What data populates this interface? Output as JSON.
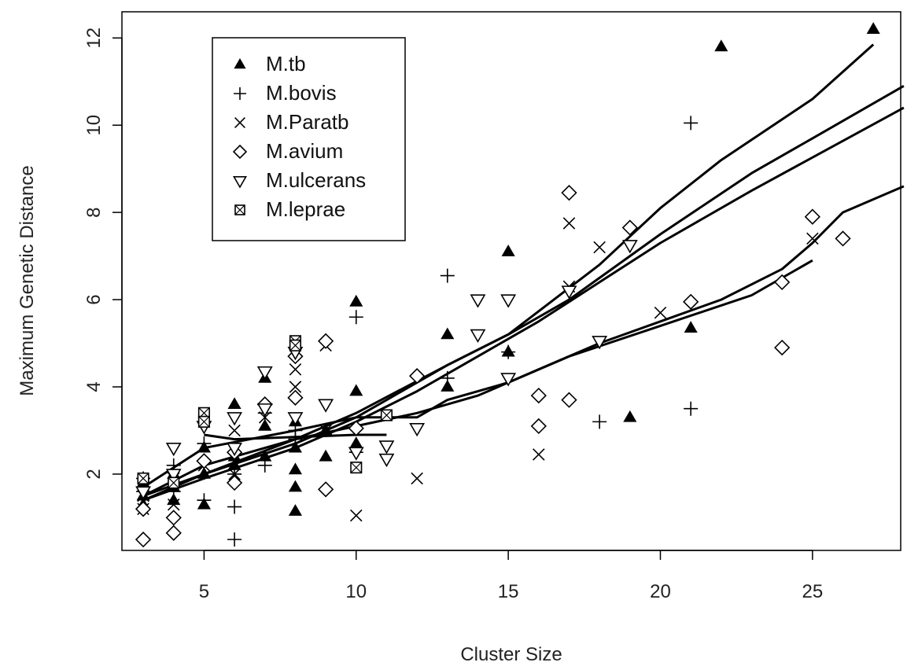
{
  "chart_data": {
    "type": "scatter",
    "title": "",
    "xlabel": "Cluster Size",
    "ylabel": "Maximum Genetic Distance",
    "xlim": [
      2.3,
      27.9
    ],
    "ylim": [
      0.25,
      12.6
    ],
    "xticks": [
      5,
      10,
      15,
      20,
      25
    ],
    "yticks": [
      2,
      4,
      6,
      8,
      10,
      12
    ],
    "grid": false,
    "legend_position": "top-left",
    "colors": {
      "ink": "#000000",
      "text": "#222222"
    },
    "series": [
      {
        "name": "M.tb",
        "marker": "filled-triangle-up",
        "points": [
          [
            3,
            1.5
          ],
          [
            3,
            1.8
          ],
          [
            3,
            1.3
          ],
          [
            4,
            1.7
          ],
          [
            4,
            2.0
          ],
          [
            4,
            1.4
          ],
          [
            5,
            2.6
          ],
          [
            5,
            1.3
          ],
          [
            5,
            2.0
          ],
          [
            6,
            3.6
          ],
          [
            6,
            2.4
          ],
          [
            6,
            2.2
          ],
          [
            7,
            4.2
          ],
          [
            7,
            3.1
          ],
          [
            7,
            2.4
          ],
          [
            8,
            3.2
          ],
          [
            8,
            2.6
          ],
          [
            8,
            2.1
          ],
          [
            8,
            1.7
          ],
          [
            8,
            1.15
          ],
          [
            9,
            3.0
          ],
          [
            9,
            2.4
          ],
          [
            10,
            5.95
          ],
          [
            10,
            3.9
          ],
          [
            10,
            2.7
          ],
          [
            13,
            5.2
          ],
          [
            13,
            4.0
          ],
          [
            15,
            7.1
          ],
          [
            15,
            4.8
          ],
          [
            19,
            3.3
          ],
          [
            21,
            5.35
          ],
          [
            22,
            11.8
          ],
          [
            27,
            12.2
          ]
        ],
        "fit": [
          [
            3,
            1.4
          ],
          [
            5,
            2.0
          ],
          [
            8,
            2.8
          ],
          [
            10,
            3.4
          ],
          [
            13,
            4.5
          ],
          [
            15,
            5.2
          ],
          [
            18,
            6.8
          ],
          [
            20,
            8.1
          ],
          [
            22,
            9.2
          ],
          [
            25,
            10.6
          ],
          [
            27,
            11.85
          ]
        ]
      },
      {
        "name": "M.bovis",
        "marker": "plus",
        "points": [
          [
            3,
            1.6
          ],
          [
            3,
            1.9
          ],
          [
            4,
            2.2
          ],
          [
            4,
            1.6
          ],
          [
            5,
            2.7
          ],
          [
            5,
            1.4
          ],
          [
            6,
            2.0
          ],
          [
            6,
            1.25
          ],
          [
            6,
            0.5
          ],
          [
            7,
            2.2
          ],
          [
            7,
            3.4
          ],
          [
            8,
            2.8
          ],
          [
            8,
            3.0
          ],
          [
            10,
            5.6
          ],
          [
            10,
            2.5
          ],
          [
            13,
            6.55
          ],
          [
            13,
            4.2
          ],
          [
            15,
            4.8
          ],
          [
            18,
            3.2
          ],
          [
            21,
            3.5
          ],
          [
            21,
            10.05
          ]
        ],
        "fit": [
          [
            3,
            1.5
          ],
          [
            5,
            2.0
          ],
          [
            8,
            2.7
          ],
          [
            10,
            3.3
          ],
          [
            13,
            4.5
          ],
          [
            15,
            5.2
          ],
          [
            17,
            6.0
          ],
          [
            20,
            7.5
          ],
          [
            23,
            8.9
          ],
          [
            25,
            9.7
          ],
          [
            28,
            10.9
          ]
        ]
      },
      {
        "name": "M.Paratb",
        "marker": "cross",
        "points": [
          [
            3,
            1.5
          ],
          [
            3,
            1.2
          ],
          [
            4,
            1.9
          ],
          [
            4,
            1.3
          ],
          [
            5,
            2.2
          ],
          [
            6,
            2.0
          ],
          [
            6,
            3.0
          ],
          [
            7,
            3.3
          ],
          [
            8,
            4.4
          ],
          [
            8,
            4.0
          ],
          [
            9,
            4.95
          ],
          [
            9,
            3.0
          ],
          [
            10,
            1.05
          ],
          [
            12,
            1.9
          ],
          [
            16,
            2.45
          ],
          [
            17,
            7.75
          ],
          [
            17,
            6.3
          ],
          [
            18,
            7.2
          ],
          [
            20,
            5.7
          ],
          [
            25,
            7.4
          ]
        ],
        "fit": [
          [
            3,
            1.4
          ],
          [
            5,
            1.9
          ],
          [
            8,
            2.6
          ],
          [
            10,
            3.2
          ],
          [
            12,
            3.9
          ],
          [
            14,
            4.7
          ],
          [
            16,
            5.5
          ],
          [
            18,
            6.4
          ],
          [
            20,
            7.3
          ],
          [
            23,
            8.5
          ],
          [
            28,
            10.4
          ]
        ]
      },
      {
        "name": "M.avium",
        "marker": "diamond",
        "points": [
          [
            3,
            0.5
          ],
          [
            3,
            1.2
          ],
          [
            4,
            0.65
          ],
          [
            4,
            1.0
          ],
          [
            5,
            2.3
          ],
          [
            6,
            1.8
          ],
          [
            6,
            2.5
          ],
          [
            7,
            3.6
          ],
          [
            8,
            3.75
          ],
          [
            8,
            4.7
          ],
          [
            9,
            1.65
          ],
          [
            9,
            5.05
          ],
          [
            10,
            3.05
          ],
          [
            12,
            4.25
          ],
          [
            16,
            3.8
          ],
          [
            16,
            3.1
          ],
          [
            17,
            3.7
          ],
          [
            17,
            8.45
          ],
          [
            19,
            7.65
          ],
          [
            21,
            5.95
          ],
          [
            24,
            6.4
          ],
          [
            24,
            4.9
          ],
          [
            25,
            7.9
          ],
          [
            26,
            7.4
          ]
        ],
        "fit": [
          [
            3,
            1.5
          ],
          [
            5,
            2.2
          ],
          [
            8,
            2.8
          ],
          [
            10,
            3.1
          ],
          [
            12,
            3.4
          ],
          [
            14,
            3.8
          ],
          [
            16,
            4.4
          ],
          [
            18,
            5.0
          ],
          [
            20,
            5.5
          ],
          [
            22,
            6.0
          ],
          [
            24,
            6.7
          ],
          [
            25,
            7.3
          ],
          [
            26,
            8.0
          ],
          [
            28,
            8.6
          ]
        ]
      },
      {
        "name": "M.ulcerans",
        "marker": "triangle-down",
        "points": [
          [
            3,
            1.6
          ],
          [
            4,
            2.6
          ],
          [
            4,
            2.0
          ],
          [
            5,
            3.1
          ],
          [
            6,
            3.3
          ],
          [
            6,
            2.6
          ],
          [
            7,
            4.35
          ],
          [
            7,
            3.5
          ],
          [
            8,
            3.3
          ],
          [
            8,
            4.8
          ],
          [
            9,
            3.6
          ],
          [
            10,
            2.5
          ],
          [
            11,
            2.65
          ],
          [
            11,
            2.35
          ],
          [
            12,
            3.05
          ],
          [
            14,
            6.0
          ],
          [
            14,
            5.2
          ],
          [
            15,
            6.0
          ],
          [
            15,
            4.2
          ],
          [
            17,
            6.2
          ],
          [
            18,
            5.05
          ],
          [
            19,
            7.25
          ]
        ],
        "fit": [
          [
            3,
            1.7
          ],
          [
            5,
            2.6
          ],
          [
            8,
            3.0
          ],
          [
            10,
            3.3
          ],
          [
            12,
            3.3
          ],
          [
            13,
            3.7
          ],
          [
            15,
            4.1
          ],
          [
            17,
            4.7
          ],
          [
            20,
            5.4
          ],
          [
            23,
            6.1
          ],
          [
            25,
            6.9
          ]
        ]
      },
      {
        "name": "M.leprae",
        "marker": "boxed-cross",
        "points": [
          [
            3,
            1.9
          ],
          [
            4,
            1.8
          ],
          [
            5,
            3.4
          ],
          [
            5,
            3.2
          ],
          [
            8,
            5.05
          ],
          [
            8,
            4.95
          ],
          [
            10,
            2.15
          ],
          [
            11,
            3.35
          ]
        ],
        "fit": [
          [
            5,
            2.9
          ],
          [
            6,
            2.8
          ],
          [
            8,
            2.85
          ],
          [
            10,
            2.9
          ],
          [
            11,
            2.9
          ]
        ]
      }
    ]
  }
}
